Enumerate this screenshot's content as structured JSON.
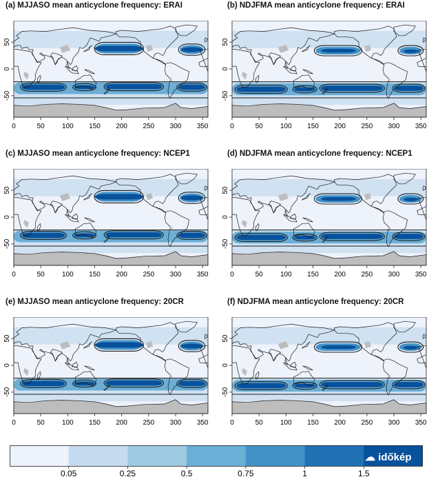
{
  "panels": [
    {
      "label": "(a) MJJASO mean anticyclone frequency: ERAI"
    },
    {
      "label": "(b) NDJFMA mean anticyclone frequency: ERAI"
    },
    {
      "label": "(c) MJJASO mean anticyclone frequency: NCEP1"
    },
    {
      "label": "(d) NDJFMA mean anticyclone frequency: NCEP1"
    },
    {
      "label": "(e) MJJASO mean anticyclone frequency: 20CR"
    },
    {
      "label": "(f) NDJFMA mean anticyclone frequency: 20CR"
    }
  ],
  "chart_data": {
    "type": "heatmap",
    "x_axis": {
      "ticks": [
        "0",
        "50",
        "100",
        "150",
        "200",
        "250",
        "300",
        "350"
      ],
      "range": [
        0,
        360
      ]
    },
    "y_axis": {
      "ticks": [
        "50",
        "0",
        "-50"
      ],
      "range": [
        -90,
        90
      ]
    },
    "colorbar": {
      "tick_labels": [
        "0.05",
        "0.25",
        "0.5",
        "0.75",
        "1",
        "1.5"
      ],
      "bins": [
        0,
        0.05,
        0.25,
        0.5,
        0.75,
        1,
        1.5,
        2
      ],
      "colors": [
        "#eef2fb",
        "#c6dbef",
        "#9ecae1",
        "#6baed6",
        "#4292c6",
        "#2171b5",
        "#08519c"
      ]
    },
    "land_color": "#bdbdbd",
    "contour_color": "#1a1a1a"
  },
  "watermark": "időkép"
}
